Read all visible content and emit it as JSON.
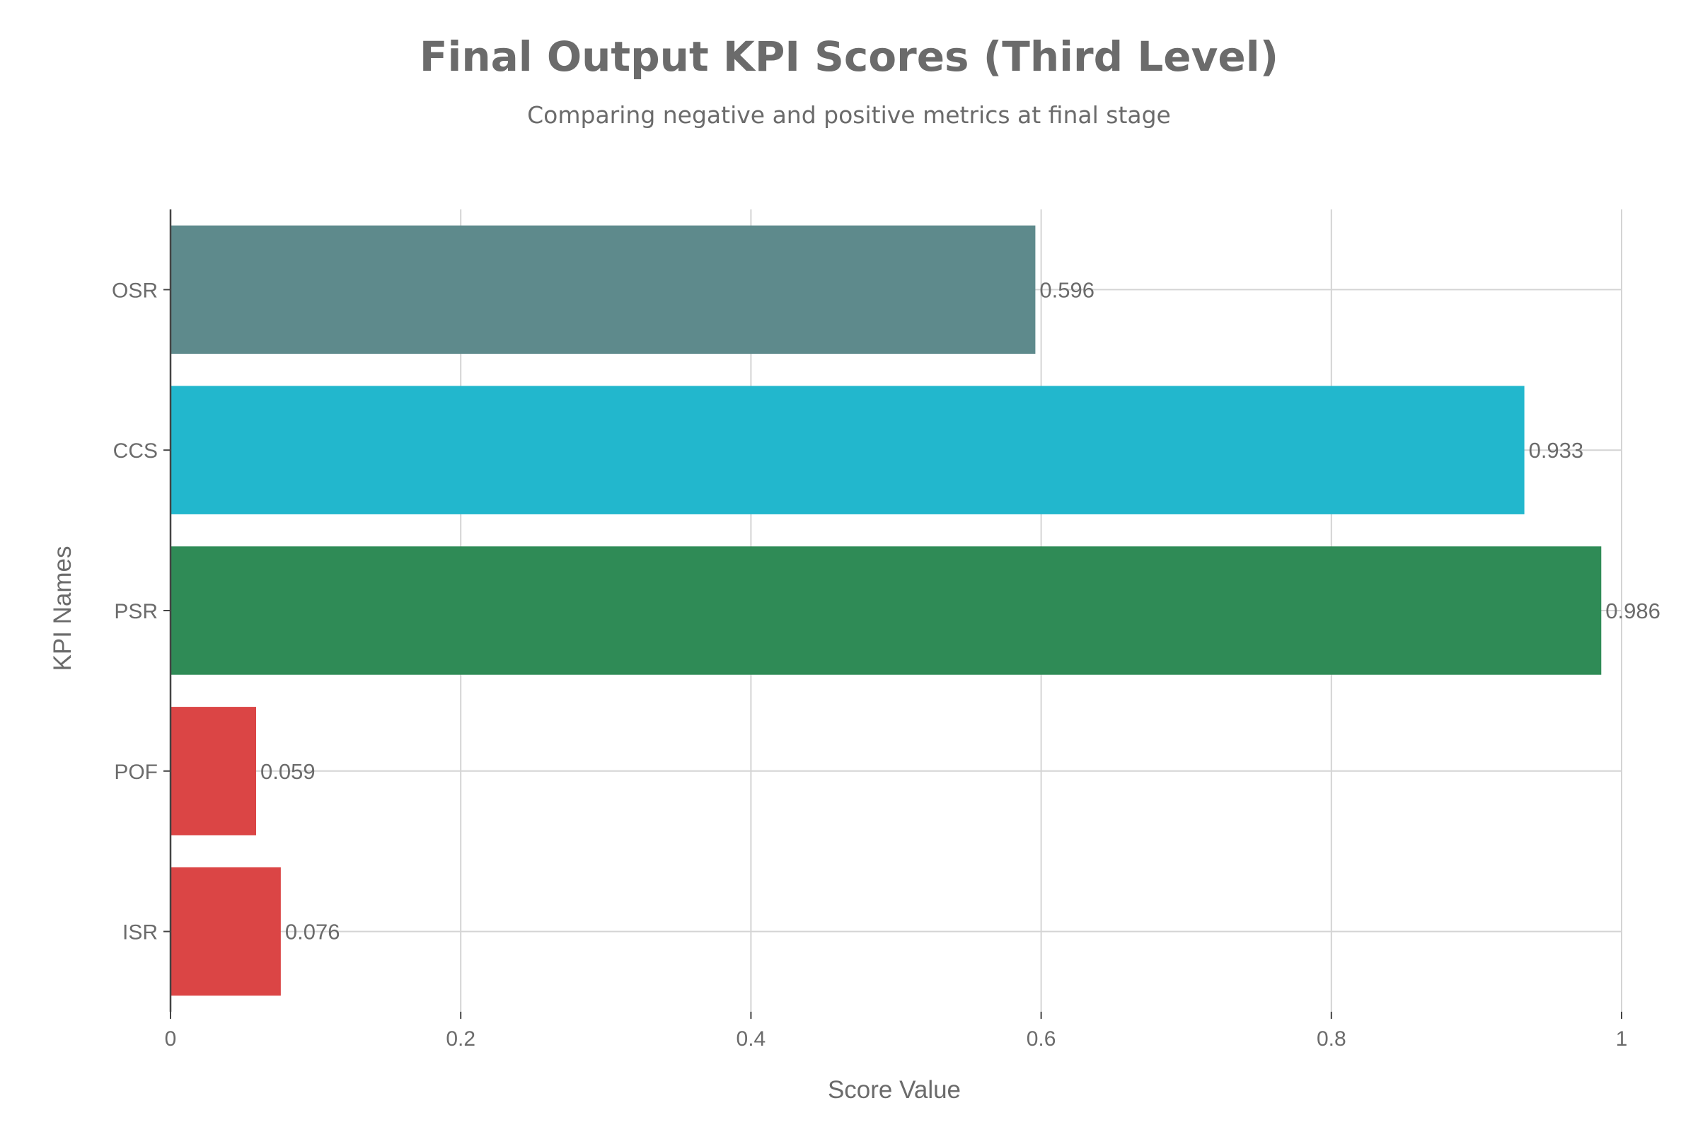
{
  "chart_data": {
    "type": "bar",
    "orientation": "horizontal",
    "title": "Final Output KPI Scores (Third Level)",
    "subtitle": "Comparing negative and positive metrics at final stage",
    "xlabel": "Score Value",
    "ylabel": "KPI Names",
    "xlim": [
      0,
      1
    ],
    "x_ticks": [
      "0",
      "0.2",
      "0.4",
      "0.6",
      "0.8",
      "1"
    ],
    "x_tick_values": [
      0,
      0.2,
      0.4,
      0.6,
      0.8,
      1
    ],
    "grid": true,
    "categories": [
      "OSR",
      "CCS",
      "PSR",
      "POF",
      "ISR"
    ],
    "values": [
      0.596,
      0.933,
      0.986,
      0.059,
      0.076
    ],
    "value_labels": [
      "0.596",
      "0.933",
      "0.986",
      "0.059",
      "0.076"
    ],
    "colors": [
      "#5e8a8c",
      "#22b7cd",
      "#2f8b56",
      "#db4545",
      "#db4545"
    ]
  }
}
